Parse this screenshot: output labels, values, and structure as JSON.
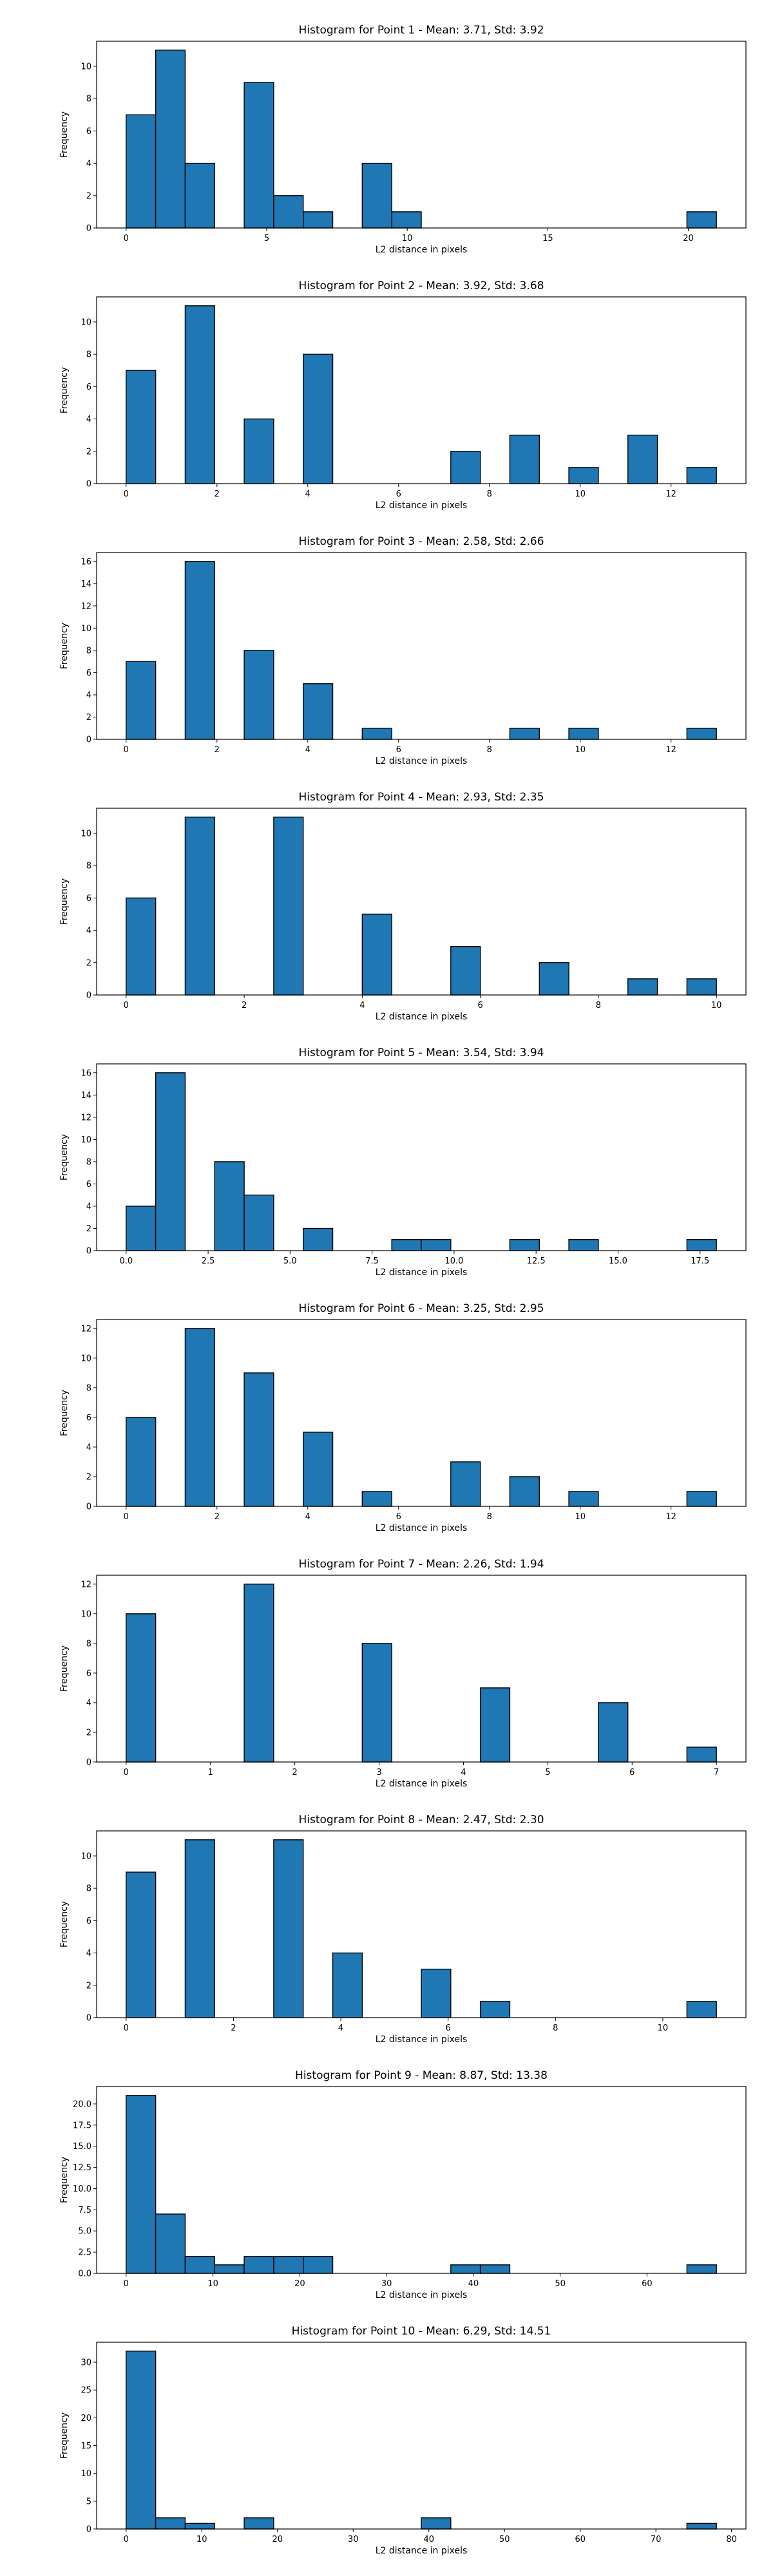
{
  "chart_data": [
    {
      "type": "bar",
      "title": "Histogram for Point 1 - Mean: 3.71, Std: 3.92",
      "xlabel": "L2 distance in pixels",
      "ylabel": "Frequency",
      "xticks": [
        0,
        5,
        10,
        15,
        20
      ],
      "xtick_labels": [
        "0",
        "5",
        "10",
        "15",
        "20"
      ],
      "yticks": [
        0,
        2,
        4,
        6,
        8,
        10
      ],
      "yticklabels": [
        "0",
        "2",
        "4",
        "6",
        "8",
        "10"
      ],
      "xlim": [
        -1.05,
        22.05
      ],
      "ylim": [
        0,
        11.55
      ],
      "bins": [
        {
          "x0": 0.0,
          "x1": 1.05,
          "count": 7
        },
        {
          "x0": 1.05,
          "x1": 2.1,
          "count": 11
        },
        {
          "x0": 2.1,
          "x1": 3.15,
          "count": 4
        },
        {
          "x0": 4.2,
          "x1": 5.25,
          "count": 9
        },
        {
          "x0": 5.25,
          "x1": 6.3,
          "count": 2
        },
        {
          "x0": 6.3,
          "x1": 7.35,
          "count": 1
        },
        {
          "x0": 8.4,
          "x1": 9.45,
          "count": 4
        },
        {
          "x0": 9.45,
          "x1": 10.5,
          "count": 1
        },
        {
          "x0": 19.95,
          "x1": 21.0,
          "count": 1
        }
      ]
    },
    {
      "type": "bar",
      "title": "Histogram for Point 2 - Mean: 3.92, Std: 3.68",
      "xlabel": "L2 distance in pixels",
      "ylabel": "Frequency",
      "xticks": [
        0,
        2,
        4,
        6,
        8,
        10,
        12
      ],
      "xtick_labels": [
        "0",
        "2",
        "4",
        "6",
        "8",
        "10",
        "12"
      ],
      "yticks": [
        0,
        2,
        4,
        6,
        8,
        10
      ],
      "yticklabels": [
        "0",
        "2",
        "4",
        "6",
        "8",
        "10"
      ],
      "xlim": [
        -0.65,
        13.65
      ],
      "ylim": [
        0,
        11.55
      ],
      "bins": [
        {
          "x0": 0.0,
          "x1": 0.65,
          "count": 7
        },
        {
          "x0": 1.3,
          "x1": 1.95,
          "count": 11
        },
        {
          "x0": 2.6,
          "x1": 3.25,
          "count": 4
        },
        {
          "x0": 3.9,
          "x1": 4.55,
          "count": 8
        },
        {
          "x0": 7.15,
          "x1": 7.8,
          "count": 2
        },
        {
          "x0": 8.45,
          "x1": 9.1,
          "count": 3
        },
        {
          "x0": 9.75,
          "x1": 10.4,
          "count": 1
        },
        {
          "x0": 11.05,
          "x1": 11.7,
          "count": 3
        },
        {
          "x0": 12.35,
          "x1": 13.0,
          "count": 1
        }
      ]
    },
    {
      "type": "bar",
      "title": "Histogram for Point 3 - Mean: 2.58, Std: 2.66",
      "xlabel": "L2 distance in pixels",
      "ylabel": "Frequency",
      "xticks": [
        0,
        2,
        4,
        6,
        8,
        10,
        12
      ],
      "xtick_labels": [
        "0",
        "2",
        "4",
        "6",
        "8",
        "10",
        "12"
      ],
      "yticks": [
        0,
        2,
        4,
        6,
        8,
        10,
        12,
        14,
        16
      ],
      "yticklabels": [
        "0",
        "2",
        "4",
        "6",
        "8",
        "10",
        "12",
        "14",
        "16"
      ],
      "xlim": [
        -0.65,
        13.65
      ],
      "ylim": [
        0,
        16.8
      ],
      "bins": [
        {
          "x0": 0.0,
          "x1": 0.65,
          "count": 7
        },
        {
          "x0": 1.3,
          "x1": 1.95,
          "count": 16
        },
        {
          "x0": 2.6,
          "x1": 3.25,
          "count": 8
        },
        {
          "x0": 3.9,
          "x1": 4.55,
          "count": 5
        },
        {
          "x0": 5.2,
          "x1": 5.85,
          "count": 1
        },
        {
          "x0": 8.45,
          "x1": 9.1,
          "count": 1
        },
        {
          "x0": 9.75,
          "x1": 10.4,
          "count": 1
        },
        {
          "x0": 12.35,
          "x1": 13.0,
          "count": 1
        }
      ]
    },
    {
      "type": "bar",
      "title": "Histogram for Point 4 - Mean: 2.93, Std: 2.35",
      "xlabel": "L2 distance in pixels",
      "ylabel": "Frequency",
      "xticks": [
        0,
        2,
        4,
        6,
        8,
        10
      ],
      "xtick_labels": [
        "0",
        "2",
        "4",
        "6",
        "8",
        "10"
      ],
      "yticks": [
        0,
        2,
        4,
        6,
        8,
        10
      ],
      "yticklabels": [
        "0",
        "2",
        "4",
        "6",
        "8",
        "10"
      ],
      "xlim": [
        -0.5,
        10.5
      ],
      "ylim": [
        0,
        11.55
      ],
      "bins": [
        {
          "x0": 0.0,
          "x1": 0.5,
          "count": 6
        },
        {
          "x0": 1.0,
          "x1": 1.5,
          "count": 11
        },
        {
          "x0": 2.5,
          "x1": 3.0,
          "count": 11
        },
        {
          "x0": 4.0,
          "x1": 4.5,
          "count": 5
        },
        {
          "x0": 5.5,
          "x1": 6.0,
          "count": 3
        },
        {
          "x0": 7.0,
          "x1": 7.5,
          "count": 2
        },
        {
          "x0": 8.5,
          "x1": 9.0,
          "count": 1
        },
        {
          "x0": 9.5,
          "x1": 10.0,
          "count": 1
        }
      ]
    },
    {
      "type": "bar",
      "title": "Histogram for Point 5 - Mean: 3.54, Std: 3.94",
      "xlabel": "L2 distance in pixels",
      "ylabel": "Frequency",
      "xticks": [
        0,
        2.5,
        5,
        7.5,
        10,
        12.5,
        15,
        17.5
      ],
      "xtick_labels": [
        "0.0",
        "2.5",
        "5.0",
        "7.5",
        "10.0",
        "12.5",
        "15.0",
        "17.5"
      ],
      "yticks": [
        0,
        2,
        4,
        6,
        8,
        10,
        12,
        14,
        16
      ],
      "yticklabels": [
        "0",
        "2",
        "4",
        "6",
        "8",
        "10",
        "12",
        "14",
        "16"
      ],
      "xlim": [
        -0.9,
        18.9
      ],
      "ylim": [
        0,
        16.8
      ],
      "bins": [
        {
          "x0": 0.0,
          "x1": 0.9,
          "count": 4
        },
        {
          "x0": 0.9,
          "x1": 1.8,
          "count": 16
        },
        {
          "x0": 2.7,
          "x1": 3.6,
          "count": 8
        },
        {
          "x0": 3.6,
          "x1": 4.5,
          "count": 5
        },
        {
          "x0": 5.4,
          "x1": 6.3,
          "count": 2
        },
        {
          "x0": 8.1,
          "x1": 9.0,
          "count": 1
        },
        {
          "x0": 9.0,
          "x1": 9.9,
          "count": 1
        },
        {
          "x0": 11.7,
          "x1": 12.6,
          "count": 1
        },
        {
          "x0": 13.5,
          "x1": 14.4,
          "count": 1
        },
        {
          "x0": 17.1,
          "x1": 18.0,
          "count": 1
        }
      ]
    },
    {
      "type": "bar",
      "title": "Histogram for Point 6 - Mean: 3.25, Std: 2.95",
      "xlabel": "L2 distance in pixels",
      "ylabel": "Frequency",
      "xticks": [
        0,
        2,
        4,
        6,
        8,
        10,
        12
      ],
      "xtick_labels": [
        "0",
        "2",
        "4",
        "6",
        "8",
        "10",
        "12"
      ],
      "yticks": [
        0,
        2,
        4,
        6,
        8,
        10,
        12
      ],
      "yticklabels": [
        "0",
        "2",
        "4",
        "6",
        "8",
        "10",
        "12"
      ],
      "xlim": [
        -0.65,
        13.65
      ],
      "ylim": [
        0,
        12.6
      ],
      "bins": [
        {
          "x0": 0.0,
          "x1": 0.65,
          "count": 6
        },
        {
          "x0": 1.3,
          "x1": 1.95,
          "count": 12
        },
        {
          "x0": 2.6,
          "x1": 3.25,
          "count": 9
        },
        {
          "x0": 3.9,
          "x1": 4.55,
          "count": 5
        },
        {
          "x0": 5.2,
          "x1": 5.85,
          "count": 1
        },
        {
          "x0": 7.15,
          "x1": 7.8,
          "count": 3
        },
        {
          "x0": 8.45,
          "x1": 9.1,
          "count": 2
        },
        {
          "x0": 9.75,
          "x1": 10.4,
          "count": 1
        },
        {
          "x0": 12.35,
          "x1": 13.0,
          "count": 1
        }
      ]
    },
    {
      "type": "bar",
      "title": "Histogram for Point 7 - Mean: 2.26, Std: 1.94",
      "xlabel": "L2 distance in pixels",
      "ylabel": "Frequency",
      "xticks": [
        0,
        1,
        2,
        3,
        4,
        5,
        6,
        7
      ],
      "xtick_labels": [
        "0",
        "1",
        "2",
        "3",
        "4",
        "5",
        "6",
        "7"
      ],
      "yticks": [
        0,
        2,
        4,
        6,
        8,
        10,
        12
      ],
      "yticklabels": [
        "0",
        "2",
        "4",
        "6",
        "8",
        "10",
        "12"
      ],
      "xlim": [
        -0.35,
        7.35
      ],
      "ylim": [
        0,
        12.6
      ],
      "bins": [
        {
          "x0": 0.0,
          "x1": 0.35,
          "count": 10
        },
        {
          "x0": 1.4,
          "x1": 1.75,
          "count": 12
        },
        {
          "x0": 2.8,
          "x1": 3.15,
          "count": 8
        },
        {
          "x0": 4.2,
          "x1": 4.55,
          "count": 5
        },
        {
          "x0": 5.6,
          "x1": 5.95,
          "count": 4
        },
        {
          "x0": 6.65,
          "x1": 7.0,
          "count": 1
        }
      ]
    },
    {
      "type": "bar",
      "title": "Histogram for Point 8 - Mean: 2.47, Std: 2.30",
      "xlabel": "L2 distance in pixels",
      "ylabel": "Frequency",
      "xticks": [
        0,
        2,
        4,
        6,
        8,
        10
      ],
      "xtick_labels": [
        "0",
        "2",
        "4",
        "6",
        "8",
        "10"
      ],
      "yticks": [
        0,
        2,
        4,
        6,
        8,
        10
      ],
      "yticklabels": [
        "0",
        "2",
        "4",
        "6",
        "8",
        "10"
      ],
      "xlim": [
        -0.55,
        11.55
      ],
      "ylim": [
        0,
        11.55
      ],
      "bins": [
        {
          "x0": 0.0,
          "x1": 0.55,
          "count": 9
        },
        {
          "x0": 1.1,
          "x1": 1.65,
          "count": 11
        },
        {
          "x0": 2.75,
          "x1": 3.3,
          "count": 11
        },
        {
          "x0": 3.85,
          "x1": 4.4,
          "count": 4
        },
        {
          "x0": 5.5,
          "x1": 6.05,
          "count": 3
        },
        {
          "x0": 6.6,
          "x1": 7.15,
          "count": 1
        },
        {
          "x0": 10.45,
          "x1": 11.0,
          "count": 1
        }
      ]
    },
    {
      "type": "bar",
      "title": "Histogram for Point 9 - Mean: 8.87, Std: 13.38",
      "xlabel": "L2 distance in pixels",
      "ylabel": "Frequency",
      "xticks": [
        0,
        10,
        20,
        30,
        40,
        50,
        60
      ],
      "xtick_labels": [
        "0",
        "10",
        "20",
        "30",
        "40",
        "50",
        "60"
      ],
      "yticks": [
        0,
        2.5,
        5,
        7.5,
        10,
        12.5,
        15,
        17.5,
        20
      ],
      "yticklabels": [
        "0.0",
        "2.5",
        "5.0",
        "7.5",
        "10.0",
        "12.5",
        "15.0",
        "17.5",
        "20.0"
      ],
      "xlim": [
        -3.4,
        71.4
      ],
      "ylim": [
        0,
        22.05
      ],
      "bins": [
        {
          "x0": 0.0,
          "x1": 3.4,
          "count": 21
        },
        {
          "x0": 3.4,
          "x1": 6.8,
          "count": 7
        },
        {
          "x0": 6.8,
          "x1": 10.2,
          "count": 2
        },
        {
          "x0": 10.2,
          "x1": 13.6,
          "count": 1
        },
        {
          "x0": 13.6,
          "x1": 17.0,
          "count": 2
        },
        {
          "x0": 17.0,
          "x1": 20.4,
          "count": 2
        },
        {
          "x0": 20.4,
          "x1": 23.8,
          "count": 2
        },
        {
          "x0": 37.4,
          "x1": 40.8,
          "count": 1
        },
        {
          "x0": 40.8,
          "x1": 44.2,
          "count": 1
        },
        {
          "x0": 64.6,
          "x1": 68.0,
          "count": 1
        }
      ]
    },
    {
      "type": "bar",
      "title": "Histogram for Point 10 - Mean: 6.29, Std: 14.51",
      "xlabel": "L2 distance in pixels",
      "ylabel": "Frequency",
      "xticks": [
        0,
        10,
        20,
        30,
        40,
        50,
        60,
        70,
        80
      ],
      "xtick_labels": [
        "0",
        "10",
        "20",
        "30",
        "40",
        "50",
        "60",
        "70",
        "80"
      ],
      "yticks": [
        0,
        5,
        10,
        15,
        20,
        25,
        30
      ],
      "yticklabels": [
        "0",
        "5",
        "10",
        "15",
        "20",
        "25",
        "30"
      ],
      "xlim": [
        -3.9,
        81.9
      ],
      "ylim": [
        0,
        33.6
      ],
      "bins": [
        {
          "x0": 0.0,
          "x1": 3.9,
          "count": 32
        },
        {
          "x0": 3.9,
          "x1": 7.8,
          "count": 2
        },
        {
          "x0": 7.8,
          "x1": 11.7,
          "count": 1
        },
        {
          "x0": 15.6,
          "x1": 19.5,
          "count": 2
        },
        {
          "x0": 39.0,
          "x1": 42.9,
          "count": 2
        },
        {
          "x0": 74.1,
          "x1": 78.0,
          "count": 1
        }
      ]
    }
  ]
}
